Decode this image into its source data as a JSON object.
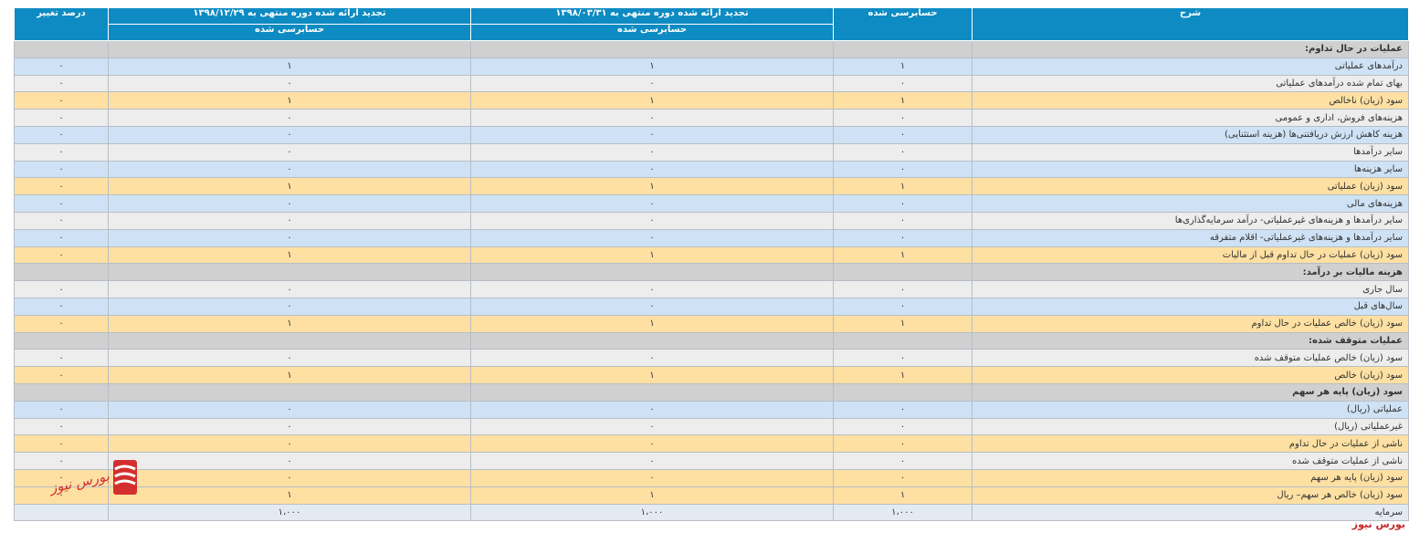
{
  "header": {
    "description": "شرح",
    "audited": "حسابرسی شده",
    "restated_1": "تجدید ارائه شده دوره منتهی به ۱۳۹۸/۰۳/۳۱",
    "restated_2": "تجدید ارائه شده دوره منتهی به ۱۳۹۸/۱۲/۲۹",
    "change_percent": "درصد تغییر",
    "audited_sub_1": "حسابرسی شده",
    "audited_sub_2": "حسابرسی شده"
  },
  "rows": [
    {
      "style": "section",
      "label": "عملیات در حال تداوم:",
      "values": [
        "",
        "",
        "",
        ""
      ]
    },
    {
      "style": "blue",
      "label": "درآمدهای عملیاتی",
      "values": [
        "۱",
        "۱",
        "۱",
        "۰"
      ]
    },
    {
      "style": "gray",
      "label": "بهای تمام شده درآمدهای عملیاتی",
      "values": [
        "۰",
        "۰",
        "۰",
        "۰"
      ]
    },
    {
      "style": "yellow",
      "label": "سود (زیان) ناخالص",
      "values": [
        "۱",
        "۱",
        "۱",
        "۰"
      ]
    },
    {
      "style": "gray",
      "label": "هزینه‌های فروش، اداری و عمومی",
      "values": [
        "۰",
        "۰",
        "۰",
        "۰"
      ]
    },
    {
      "style": "blue",
      "label": "هزینه کاهش ارزش دریافتنی‌ها (هزینه استثنایی)",
      "values": [
        "۰",
        "۰",
        "۰",
        "۰"
      ]
    },
    {
      "style": "gray",
      "label": "سایر درآمدها",
      "values": [
        "۰",
        "۰",
        "۰",
        "۰"
      ]
    },
    {
      "style": "blue",
      "label": "سایر هزینه‌ها",
      "values": [
        "۰",
        "۰",
        "۰",
        "۰"
      ]
    },
    {
      "style": "yellow",
      "label": "سود (زیان) عملیاتی",
      "values": [
        "۱",
        "۱",
        "۱",
        "۰"
      ]
    },
    {
      "style": "blue",
      "label": "هزینه‌های مالی",
      "values": [
        "۰",
        "۰",
        "۰",
        "۰"
      ]
    },
    {
      "style": "gray",
      "label": "سایر درآمدها و هزینه‌های غیرعملیاتی- درآمد سرمایه‌گذاری‌ها",
      "values": [
        "۰",
        "۰",
        "۰",
        "۰"
      ]
    },
    {
      "style": "blue",
      "label": "سایر درآمدها و هزینه‌های غیرعملیاتی- اقلام متفرقه",
      "values": [
        "۰",
        "۰",
        "۰",
        "۰"
      ]
    },
    {
      "style": "yellow",
      "label": "سود (زیان) عملیات در حال تداوم قبل از مالیات",
      "values": [
        "۱",
        "۱",
        "۱",
        "۰"
      ]
    },
    {
      "style": "section",
      "label": "هزینه مالیات بر درآمد:",
      "values": [
        "",
        "",
        "",
        ""
      ]
    },
    {
      "style": "gray",
      "label": "سال جاری",
      "values": [
        "۰",
        "۰",
        "۰",
        "۰"
      ]
    },
    {
      "style": "blue",
      "label": "سال‌های قبل",
      "values": [
        "۰",
        "۰",
        "۰",
        "۰"
      ]
    },
    {
      "style": "yellow",
      "label": "سود (زیان) خالص عملیات در حال تداوم",
      "values": [
        "۱",
        "۱",
        "۱",
        "۰"
      ]
    },
    {
      "style": "section",
      "label": "عملیات متوقف شده:",
      "values": [
        "",
        "",
        "",
        ""
      ]
    },
    {
      "style": "gray",
      "label": "سود (زیان) خالص عملیات متوقف شده",
      "values": [
        "۰",
        "۰",
        "۰",
        "۰"
      ]
    },
    {
      "style": "yellow",
      "label": "سود (زیان) خالص",
      "values": [
        "۱",
        "۱",
        "۱",
        "۰"
      ]
    },
    {
      "style": "section",
      "label": "سود (زیان) پایه هر سهم",
      "values": [
        "",
        "",
        "",
        ""
      ]
    },
    {
      "style": "blue",
      "label": "عملیاتی (ریال)",
      "values": [
        "۰",
        "۰",
        "۰",
        "۰"
      ]
    },
    {
      "style": "gray",
      "label": "غیرعملیاتی (ریال)",
      "values": [
        "۰",
        "۰",
        "۰",
        "۰"
      ]
    },
    {
      "style": "yellow",
      "label": "ناشی از عملیات در حال تداوم",
      "values": [
        "۰",
        "۰",
        "۰",
        "۰"
      ]
    },
    {
      "style": "gray",
      "label": "ناشی از عملیات متوقف شده",
      "values": [
        "۰",
        "۰",
        "۰",
        "۰"
      ]
    },
    {
      "style": "yellow",
      "label": "سود (زیان) پایه هر سهم",
      "values": [
        "۰",
        "۰",
        "۰",
        "۰"
      ]
    },
    {
      "style": "yellow",
      "label": "سود (زیان) خالص هر سهم– ریال",
      "values": [
        "۱",
        "۱",
        "۱",
        "۰"
      ]
    },
    {
      "style": "capital",
      "label": "سرمایه",
      "values": [
        "۱،۰۰۰",
        "۱،۰۰۰",
        "۱،۰۰۰",
        ""
      ]
    }
  ],
  "watermark": {
    "logo_text": "بورس نیوز",
    "logo_icon": "bourse-news-logo-icon",
    "accent": "#d32f2f"
  },
  "footer": {
    "brand": "بورس نیوز"
  },
  "colors": {
    "header": "#0e8bc2",
    "blue_row": "#cfe2f5",
    "gray_row": "#ededed",
    "yellow_row": "#fde0a2",
    "section_row": "#d0d0d0"
  }
}
